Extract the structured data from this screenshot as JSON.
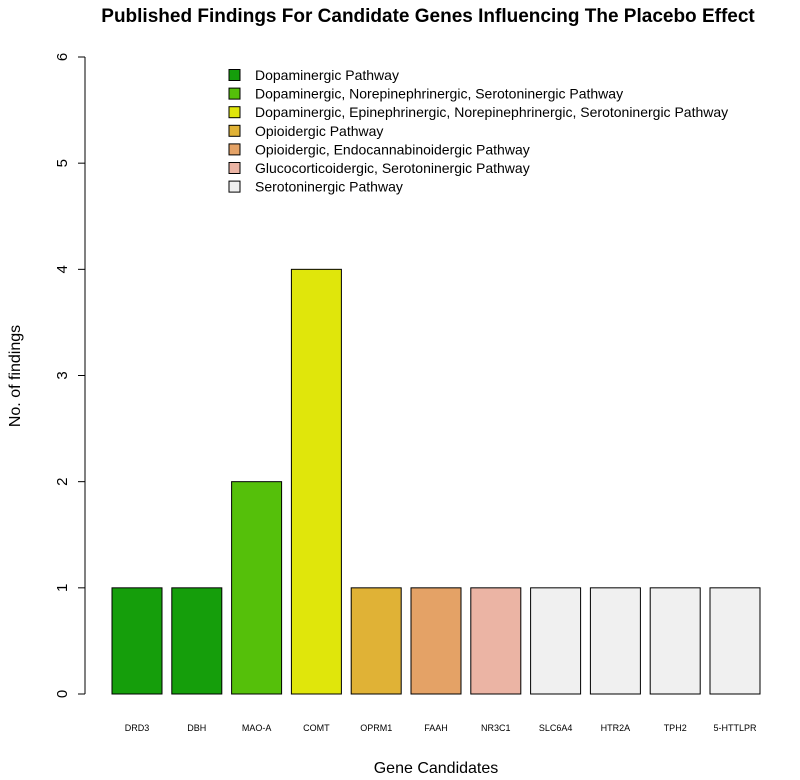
{
  "chart_data": {
    "type": "bar",
    "title": "Published Findings For Candidate Genes Influencing The Placebo Effect",
    "xlabel": "Gene Candidates",
    "ylabel": "No. of findings",
    "ylim": [
      0,
      6
    ],
    "yticks": [
      "0",
      "1",
      "2",
      "3",
      "4",
      "5",
      "6"
    ],
    "grid": false,
    "legend_position": "top-center",
    "categories": [
      "DRD3",
      "DBH",
      "MAO-A",
      "COMT",
      "OPRM1",
      "FAAH",
      "NR3C1",
      "SLC6A4",
      "HTR2A",
      "TPH2",
      "5-HTTLPR"
    ],
    "values": [
      1,
      1,
      2,
      4,
      1,
      1,
      1,
      1,
      1,
      1,
      1
    ],
    "bar_colors": [
      "#159e0b",
      "#159e0b",
      "#55c00a",
      "#e0e60b",
      "#e0b236",
      "#e4a266",
      "#ebb4a4",
      "#f0f0f0",
      "#f0f0f0",
      "#f0f0f0",
      "#f0f0f0"
    ],
    "legend": [
      {
        "label": "Dopaminergic Pathway",
        "color": "#159e0b"
      },
      {
        "label": "Dopaminergic, Norepinephrinergic, Serotoninergic  Pathway",
        "color": "#55c00a"
      },
      {
        "label": "Dopaminergic, Epinephrinergic, Norepinephrinergic, Serotoninergic Pathway",
        "color": "#e0e60b"
      },
      {
        "label": "Opioidergic Pathway",
        "color": "#e0b236"
      },
      {
        "label": "Opioidergic, Endocannabinoidergic Pathway",
        "color": "#e4a266"
      },
      {
        "label": "Glucocorticoidergic, Serotoninergic Pathway",
        "color": "#ebb4a4"
      },
      {
        "label": "Serotoninergic Pathway",
        "color": "#f0f0f0"
      }
    ]
  }
}
